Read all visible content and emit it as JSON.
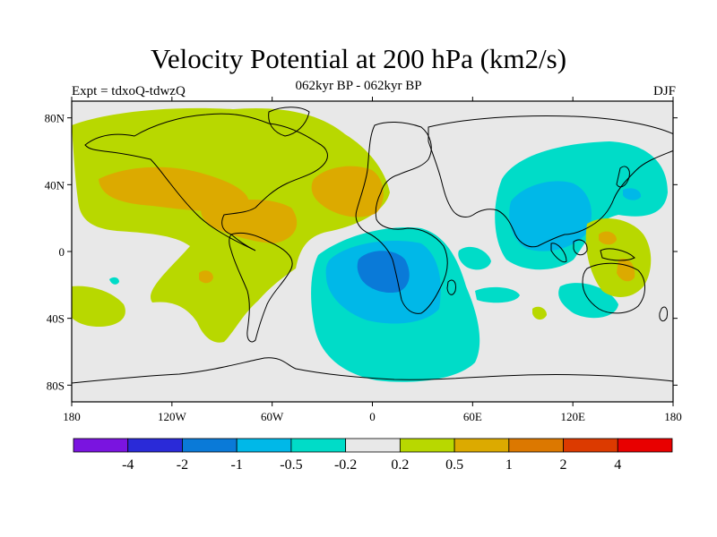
{
  "title": "Velocity Potential at 200 hPa (km2/s)",
  "subtitle": "062kyr BP - 062kyr BP",
  "left_label": "Expt = tdxoQ-tdwzQ",
  "right_label": "DJF",
  "map": {
    "projection": "cylindrical equidistant",
    "lon_range": [
      -180,
      180
    ],
    "lat_range": [
      -90,
      90
    ],
    "lon_ticks": [
      {
        "lon": -180,
        "label": "180"
      },
      {
        "lon": -120,
        "label": "120W"
      },
      {
        "lon": -60,
        "label": "60W"
      },
      {
        "lon": 0,
        "label": "0"
      },
      {
        "lon": 60,
        "label": "60E"
      },
      {
        "lon": 120,
        "label": "120E"
      },
      {
        "lon": 180,
        "label": "180"
      }
    ],
    "lat_ticks": [
      {
        "lat": 80,
        "label": "80N"
      },
      {
        "lat": 40,
        "label": "40N"
      },
      {
        "lat": 0,
        "label": "0"
      },
      {
        "lat": -40,
        "label": "40S"
      },
      {
        "lat": -80,
        "label": "80S"
      }
    ]
  },
  "colorbar": {
    "colors": [
      "#7a14e0",
      "#2a2ad8",
      "#0a7ad8",
      "#00b8e8",
      "#00dcc8",
      "#e8e8e8",
      "#b8d800",
      "#dcaa00",
      "#dc7800",
      "#dc3a00",
      "#e80000"
    ],
    "labels": [
      "-4",
      "-2",
      "-1",
      "-0.5",
      "-0.2",
      "0.2",
      "0.5",
      "1",
      "2",
      "4"
    ]
  },
  "fill_colors": {
    "background": "#e8e8e8",
    "pos_0_2": "#b8d800",
    "pos_0_5": "#dcaa00",
    "pos_1": "#dc7800",
    "neg_0_2": "#00dcc8",
    "neg_0_5": "#00b8e8",
    "neg_1": "#0a7ad8"
  }
}
